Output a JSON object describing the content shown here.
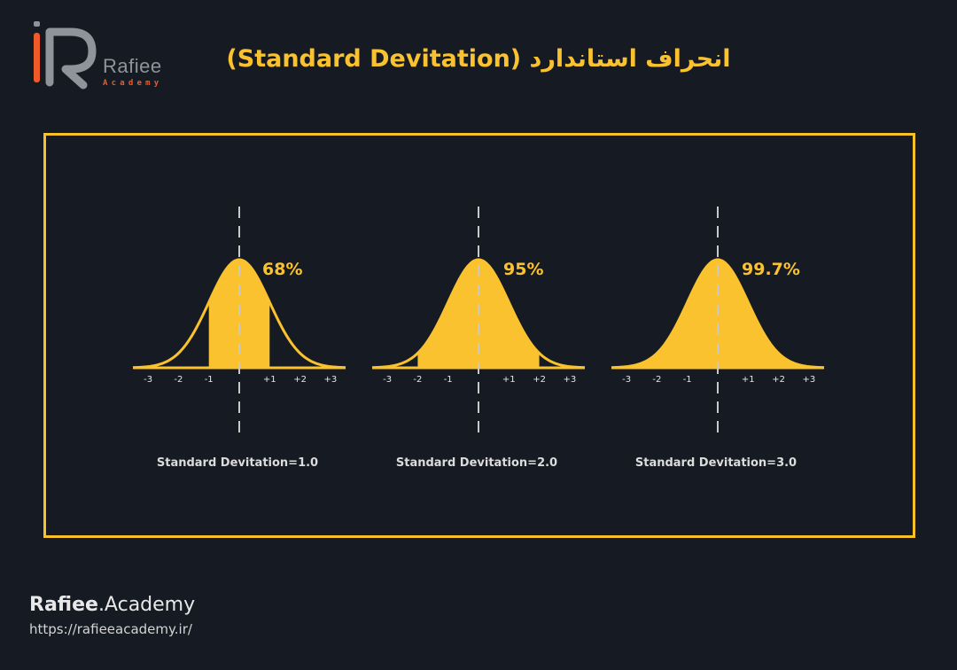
{
  "brand": {
    "logo_name": "Rafiee",
    "logo_sub": "Academy",
    "logo_letters": "iR",
    "footer_name_bold": "Rafiee",
    "footer_name_rest": ".Academy",
    "footer_url": "https://rafieeacademy.ir/"
  },
  "title": "انحراف استاندارد (Standard Devitation)",
  "colors": {
    "background": "#161a22",
    "accent_yellow": "#f9c22e",
    "logo_orange": "#f05a28",
    "logo_gray": "#8f949b",
    "dash_line": "#c9c9c9"
  },
  "chart_data": {
    "type": "area",
    "x_ticks": [
      "-3",
      "-2",
      "-1",
      "+1",
      "+2",
      "+3"
    ],
    "x_tick_values": [
      -3,
      -2,
      -1,
      1,
      2,
      3
    ],
    "x_range": [
      -3.5,
      3.5
    ],
    "panels": [
      {
        "sd": 1.0,
        "percent": "68%",
        "caption": "Standard Devitation=1.0",
        "shaded_range": [
          -1,
          1
        ]
      },
      {
        "sd": 2.0,
        "percent": "95%",
        "caption": "Standard Devitation=2.0",
        "shaded_range": [
          -2,
          2
        ]
      },
      {
        "sd": 3.0,
        "percent": "99.7%",
        "caption": "Standard Devitation=3.0",
        "shaded_range": [
          -3,
          3
        ]
      }
    ]
  }
}
